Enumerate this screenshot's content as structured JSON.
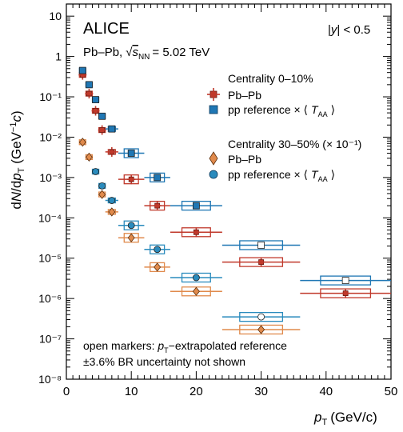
{
  "chart_data": {
    "type": "scatter",
    "experiment": "ALICE",
    "system": "Pb–Pb,",
    "energy_label": "= 5.02 TeV",
    "rapidity_label": "| < 0.5",
    "ylabel": "dN/dp_T (GeV⁻¹c)",
    "xlabel": "(GeV/c)",
    "xlim": [
      0,
      50
    ],
    "ylim": [
      1e-08,
      20
    ],
    "yscale": "log",
    "x_ticks": [
      0,
      10,
      20,
      30,
      40,
      50
    ],
    "x_tick_labels": [
      "0",
      "10",
      "20",
      "30",
      "40",
      "50"
    ],
    "y_ticks": [
      1e-08,
      1e-07,
      1e-06,
      1e-05,
      0.0001,
      0.001,
      0.01,
      0.1,
      1,
      10
    ],
    "y_tick_labels": [
      "10⁻⁸",
      "10⁻⁷",
      "10⁻⁶",
      "10⁻⁵",
      "10⁻⁴",
      "10⁻³",
      "10⁻²",
      "10⁻¹",
      "1",
      "10"
    ],
    "legend": {
      "group1_title": "Centrality 0–10%",
      "group2_title": "Centrality 30–50% (× 10⁻¹)",
      "pbpb_label": "Pb–Pb",
      "pp_label": "pp reference × ⟨",
      "taa_suffix": "⟩"
    },
    "notes": [
      "open markers: p_T-extrapolated reference",
      "±3.6% BR uncertainty not shown"
    ],
    "colors": {
      "pbpb_central": "#c0392b",
      "pp_central": "#1f77b4",
      "pbpb_semi": "#e08a4c",
      "pp_semi": "#2a8bbd"
    },
    "series": [
      {
        "name": "Pb–Pb",
        "group": "Centrality 0–10%",
        "marker": "cross",
        "color": "#c0392b",
        "points": [
          {
            "x": 2.5,
            "y": 0.35,
            "xlow": 2,
            "xhigh": 3
          },
          {
            "x": 3.5,
            "y": 0.12,
            "xlow": 3,
            "xhigh": 4
          },
          {
            "x": 4.5,
            "y": 0.045,
            "xlow": 4,
            "xhigh": 5
          },
          {
            "x": 5.5,
            "y": 0.015,
            "xlow": 5,
            "xhigh": 6
          },
          {
            "x": 7,
            "y": 0.0043,
            "xlow": 6,
            "xhigh": 8
          },
          {
            "x": 10,
            "y": 0.0009,
            "xlow": 8,
            "xhigh": 12
          },
          {
            "x": 14,
            "y": 0.0002,
            "xlow": 12,
            "xhigh": 16
          },
          {
            "x": 20,
            "y": 4.4e-05,
            "xlow": 16,
            "xhigh": 24
          },
          {
            "x": 30,
            "y": 8e-06,
            "xlow": 24,
            "xhigh": 36
          },
          {
            "x": 43,
            "y": 1.35e-06,
            "xlow": 36,
            "xhigh": 50
          }
        ]
      },
      {
        "name": "pp reference",
        "group": "Centrality 0–10%",
        "marker": "square",
        "color": "#1f77b4",
        "points": [
          {
            "x": 2.5,
            "y": 0.45,
            "xlow": 2,
            "xhigh": 3,
            "open": false
          },
          {
            "x": 3.5,
            "y": 0.2,
            "xlow": 3,
            "xhigh": 4,
            "open": false
          },
          {
            "x": 4.5,
            "y": 0.085,
            "xlow": 4,
            "xhigh": 5,
            "open": false
          },
          {
            "x": 5.5,
            "y": 0.033,
            "xlow": 5,
            "xhigh": 6,
            "open": false
          },
          {
            "x": 7,
            "y": 0.016,
            "xlow": 6,
            "xhigh": 8,
            "open": false
          },
          {
            "x": 10,
            "y": 0.004,
            "xlow": 8,
            "xhigh": 12,
            "open": false
          },
          {
            "x": 14,
            "y": 0.001,
            "xlow": 12,
            "xhigh": 16,
            "open": false
          },
          {
            "x": 20,
            "y": 0.0002,
            "xlow": 16,
            "xhigh": 24,
            "open": false
          },
          {
            "x": 30,
            "y": 2.1e-05,
            "xlow": 24,
            "xhigh": 36,
            "open": true
          },
          {
            "x": 43,
            "y": 2.8e-06,
            "xlow": 36,
            "xhigh": 50,
            "open": true
          }
        ]
      },
      {
        "name": "Pb–Pb",
        "group": "Centrality 30–50% (× 10⁻¹)",
        "marker": "diamond",
        "color": "#e08a4c",
        "points": [
          {
            "x": 2.5,
            "y": 0.0075,
            "xlow": 2,
            "xhigh": 3
          },
          {
            "x": 3.5,
            "y": 0.0032,
            "xlow": 3,
            "xhigh": 4
          },
          {
            "x": 5.5,
            "y": 0.00038,
            "xlow": 5,
            "xhigh": 6
          },
          {
            "x": 7,
            "y": 0.00014,
            "xlow": 6,
            "xhigh": 8
          },
          {
            "x": 10,
            "y": 3.2e-05,
            "xlow": 8,
            "xhigh": 12
          },
          {
            "x": 14,
            "y": 6e-06,
            "xlow": 12,
            "xhigh": 16
          },
          {
            "x": 20,
            "y": 1.5e-06,
            "xlow": 16,
            "xhigh": 24
          },
          {
            "x": 30,
            "y": 1.7e-07,
            "xlow": 24,
            "xhigh": 36
          }
        ]
      },
      {
        "name": "pp reference",
        "group": "Centrality 30–50% (× 10⁻¹)",
        "marker": "circle",
        "color": "#2a8bbd",
        "points": [
          {
            "x": 4.5,
            "y": 0.0014,
            "xlow": 4,
            "xhigh": 5,
            "open": false
          },
          {
            "x": 5.5,
            "y": 0.00062,
            "xlow": 5,
            "xhigh": 6,
            "open": false
          },
          {
            "x": 7,
            "y": 0.00027,
            "xlow": 6,
            "xhigh": 8,
            "open": false
          },
          {
            "x": 10,
            "y": 6.5e-05,
            "xlow": 8,
            "xhigh": 12,
            "open": false
          },
          {
            "x": 14,
            "y": 1.65e-05,
            "xlow": 12,
            "xhigh": 16,
            "open": false
          },
          {
            "x": 20,
            "y": 3.3e-06,
            "xlow": 16,
            "xhigh": 24,
            "open": false
          },
          {
            "x": 30,
            "y": 3.5e-07,
            "xlow": 24,
            "xhigh": 36,
            "open": true
          }
        ]
      }
    ]
  }
}
